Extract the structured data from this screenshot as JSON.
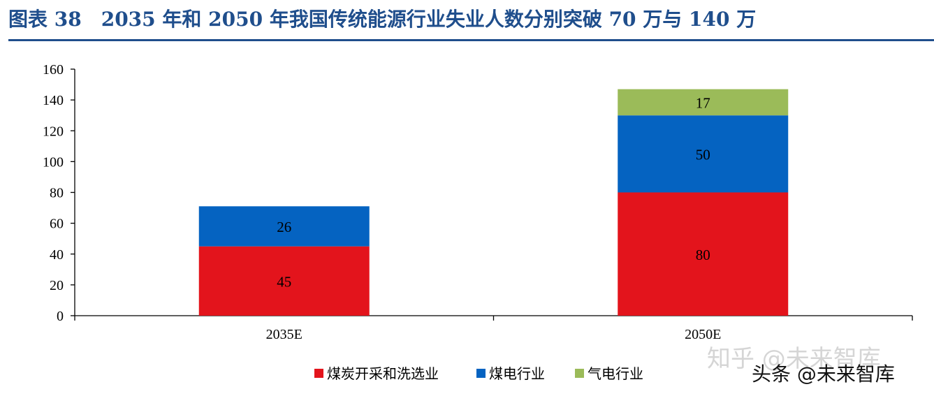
{
  "title": "图表 38　2035 年和 2050 年我国传统能源行业失业人数分别突破 70 万与 140 万",
  "chart_data": {
    "type": "bar",
    "stacked": true,
    "categories": [
      "2035E",
      "2050E"
    ],
    "series": [
      {
        "name": "煤炭开采和洗选业",
        "values": [
          45,
          80
        ],
        "color": "#e3141c"
      },
      {
        "name": "煤电行业",
        "values": [
          26,
          50
        ],
        "color": "#0563c1"
      },
      {
        "name": "气电行业",
        "values": [
          null,
          17
        ],
        "color": "#9bbb59"
      }
    ],
    "ylim": [
      0,
      160
    ],
    "yticks": [
      0,
      20,
      40,
      60,
      80,
      100,
      120,
      140,
      160
    ],
    "grid": false,
    "legend_position": "bottom"
  },
  "watermarks": [
    "知乎 @未来智库",
    "头条 @未来智库"
  ]
}
